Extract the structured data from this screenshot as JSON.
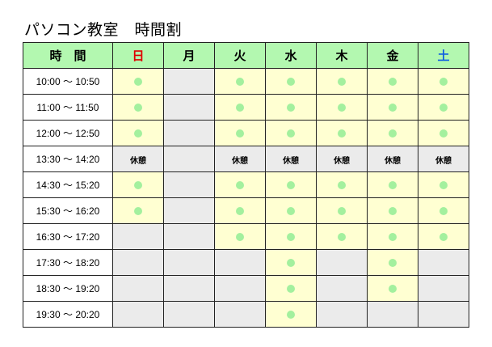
{
  "title": "パソコン教室　時間割",
  "header": {
    "time_label": "時　間",
    "days": [
      {
        "label": "日",
        "color": "#e00000"
      },
      {
        "label": "月",
        "color": "#000000"
      },
      {
        "label": "火",
        "color": "#000000"
      },
      {
        "label": "水",
        "color": "#000000"
      },
      {
        "label": "木",
        "color": "#000000"
      },
      {
        "label": "金",
        "color": "#000000"
      },
      {
        "label": "土",
        "color": "#1060e0"
      }
    ]
  },
  "break_label": "休憩",
  "colors": {
    "header": "#b3f8b0",
    "open": "#ffffd2",
    "closed": "#ebebeb",
    "dot": "#a3f09e"
  },
  "legend_note": "cells: o = class (dot), - = no class, b = break",
  "rows": [
    {
      "time": "10:00 ～ 10:50",
      "cells": [
        "o",
        "-",
        "o",
        "o",
        "o",
        "o",
        "o"
      ]
    },
    {
      "time": "11:00 ～ 11:50",
      "cells": [
        "o",
        "-",
        "o",
        "o",
        "o",
        "o",
        "o"
      ]
    },
    {
      "time": "12:00 ～ 12:50",
      "cells": [
        "o",
        "-",
        "o",
        "o",
        "o",
        "o",
        "o"
      ]
    },
    {
      "time": "13:30 ～ 14:20",
      "cells": [
        "b",
        "-",
        "b",
        "b",
        "b",
        "b",
        "b"
      ]
    },
    {
      "time": "14:30 ～ 15:20",
      "cells": [
        "o",
        "-",
        "o",
        "o",
        "o",
        "o",
        "o"
      ]
    },
    {
      "time": "15:30 ～ 16:20",
      "cells": [
        "o",
        "-",
        "o",
        "o",
        "o",
        "o",
        "o"
      ]
    },
    {
      "time": "16:30 ～ 17:20",
      "cells": [
        "-",
        "-",
        "o",
        "o",
        "o",
        "o",
        "o"
      ]
    },
    {
      "time": "17:30 ～ 18:20",
      "cells": [
        "-",
        "-",
        "-",
        "o",
        "-",
        "o",
        "-"
      ]
    },
    {
      "time": "18:30 ～ 19:20",
      "cells": [
        "-",
        "-",
        "-",
        "o",
        "-",
        "o",
        "-"
      ]
    },
    {
      "time": "19:30 ～ 20:20",
      "cells": [
        "-",
        "-",
        "-",
        "o",
        "-",
        "-",
        "-"
      ]
    }
  ]
}
